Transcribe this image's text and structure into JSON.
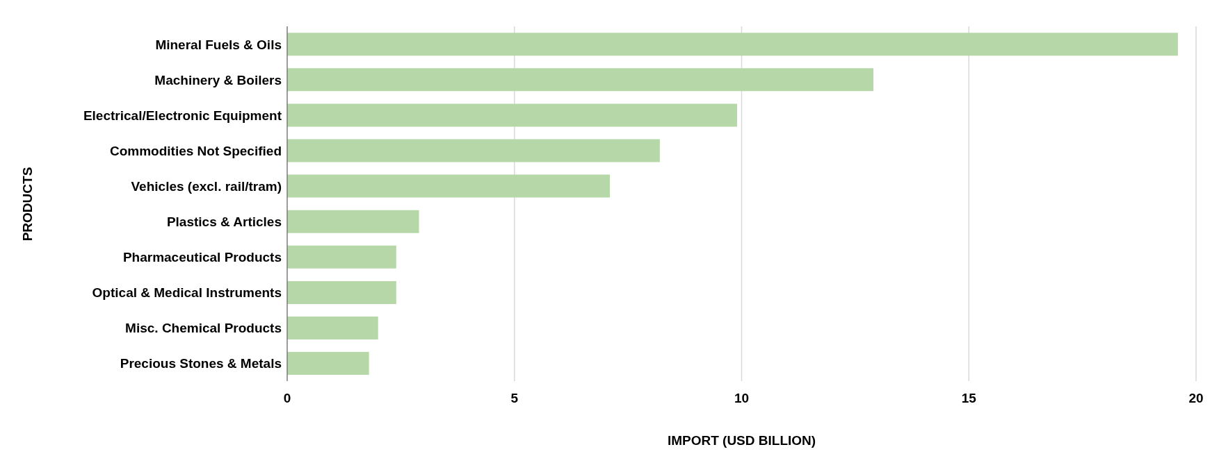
{
  "chart_data": {
    "type": "bar",
    "orientation": "horizontal",
    "xlabel": "IMPORT (USD BILLION)",
    "ylabel": "PRODUCTS",
    "categories": [
      "Mineral Fuels & Oils",
      "Machinery & Boilers",
      "Electrical/Electronic Equipment",
      "Commodities Not Specified",
      "Vehicles (excl. rail/tram)",
      "Plastics & Articles",
      "Pharmaceutical Products",
      "Optical & Medical Instruments",
      "Misc. Chemical Products",
      "Precious Stones & Metals"
    ],
    "values": [
      19.6,
      12.9,
      9.9,
      8.2,
      7.1,
      2.9,
      2.4,
      2.4,
      2.0,
      1.8
    ],
    "color": "#b6d7a8",
    "xlim": [
      0,
      20
    ],
    "xticks": [
      0,
      5,
      10,
      15,
      20
    ],
    "grid": "x",
    "legend": false
  }
}
